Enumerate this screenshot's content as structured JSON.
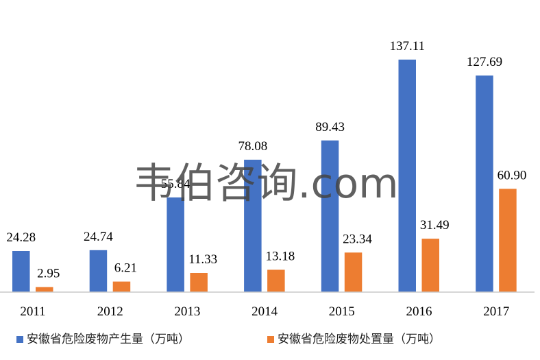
{
  "watermark": "韦伯咨询.com",
  "chart_data": {
    "type": "bar",
    "categories": [
      "2011",
      "2012",
      "2013",
      "2014",
      "2015",
      "2016",
      "2017"
    ],
    "series": [
      {
        "name": "安徽省危险废物产生量（万吨）",
        "color": "#4472C4",
        "values": [
          24.28,
          24.74,
          55.84,
          78.08,
          89.43,
          137.11,
          127.69
        ],
        "labels": [
          "24.28",
          "24.74",
          "55.84",
          "78.08",
          "89.43",
          "137.11",
          "127.69"
        ]
      },
      {
        "name": "安徽省危险废物处置量（万吨）",
        "color": "#ED7D31",
        "values": [
          2.95,
          6.21,
          11.33,
          13.18,
          23.34,
          31.49,
          60.9
        ],
        "labels": [
          "2.95",
          "6.21",
          "11.33",
          "13.18",
          "23.34",
          "31.49",
          "60.90"
        ]
      }
    ],
    "title": "",
    "xlabel": "",
    "ylabel": "",
    "ylim": [
      0,
      160
    ],
    "grid": false,
    "legend": "bottom"
  }
}
